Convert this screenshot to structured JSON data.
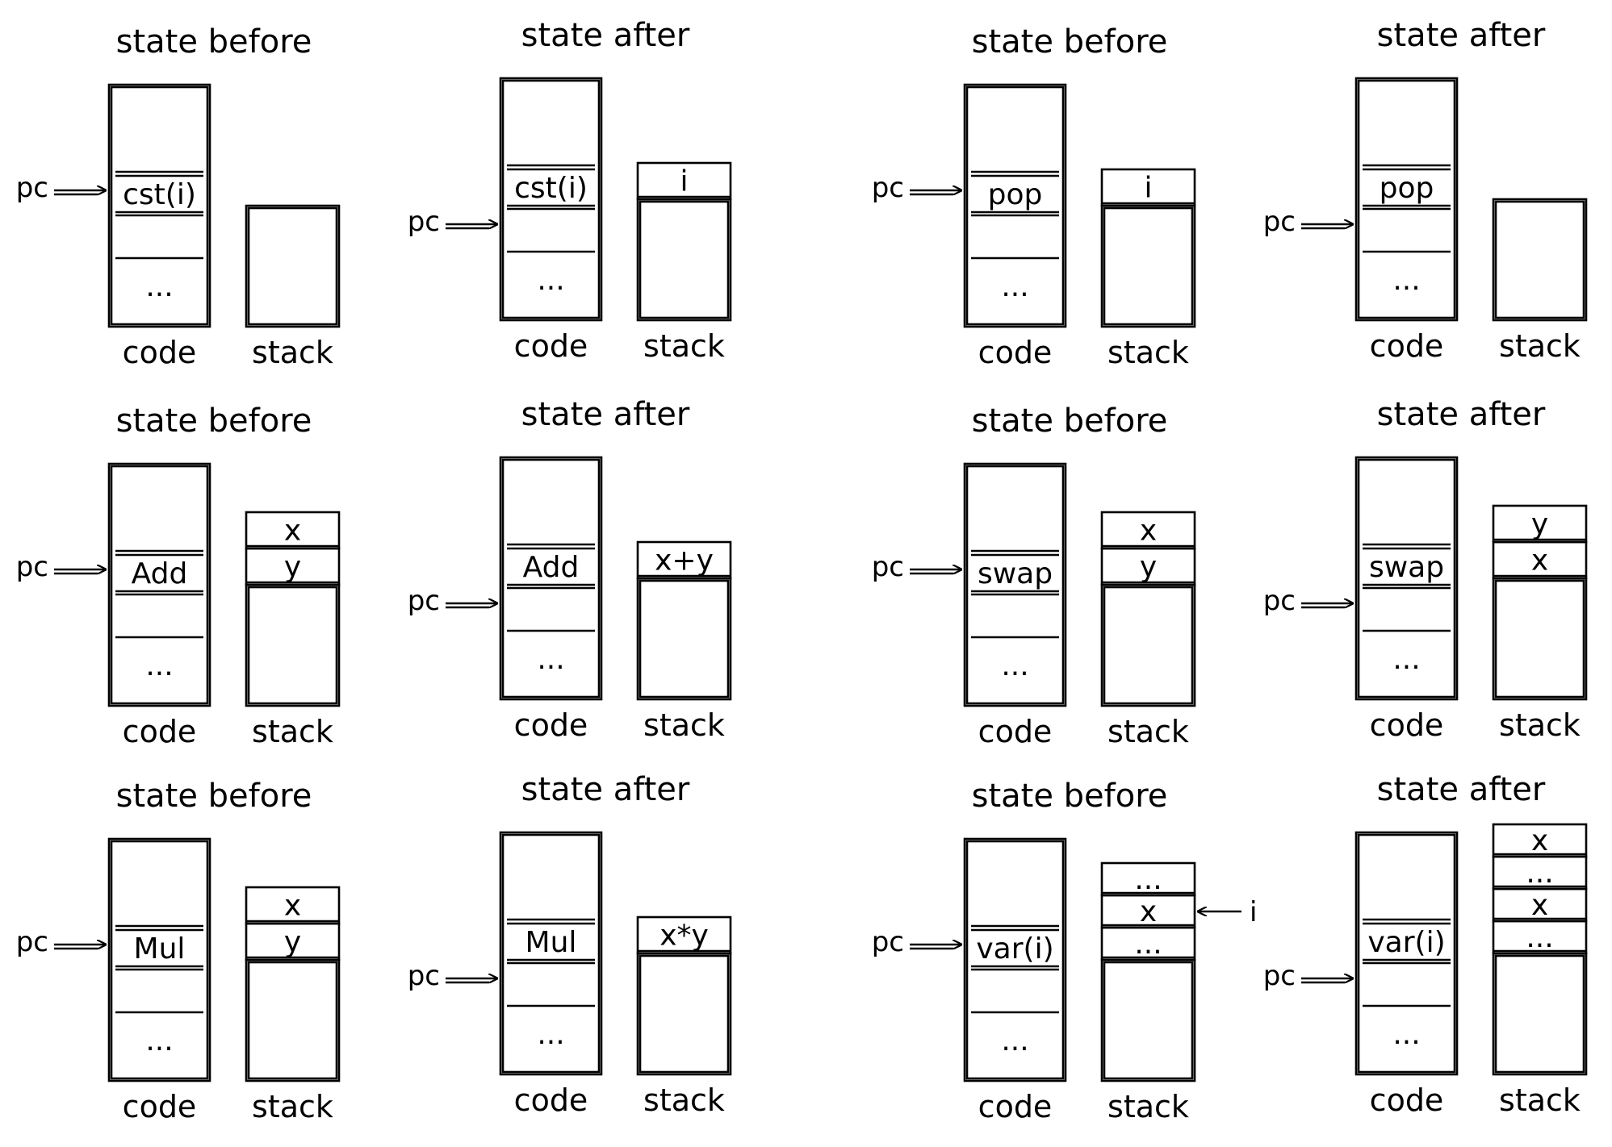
{
  "labels": {
    "before": "state before",
    "after": "state after",
    "code": "code",
    "stack": "stack",
    "pc": "pc",
    "dots": "..."
  },
  "panels": [
    {
      "id": "cst",
      "before": {
        "instr": "cst(i)",
        "stack": []
      },
      "after": {
        "instr": "cst(i)",
        "stack": [
          "i"
        ]
      }
    },
    {
      "id": "pop",
      "before": {
        "instr": "pop",
        "stack": [
          "i"
        ]
      },
      "after": {
        "instr": "pop",
        "stack": []
      }
    },
    {
      "id": "add",
      "before": {
        "instr": "Add",
        "stack": [
          "x",
          "y"
        ]
      },
      "after": {
        "instr": "Add",
        "stack": [
          "x+y"
        ]
      }
    },
    {
      "id": "swap",
      "before": {
        "instr": "swap",
        "stack": [
          "x",
          "y"
        ]
      },
      "after": {
        "instr": "swap",
        "stack": [
          "y",
          "x"
        ]
      }
    },
    {
      "id": "mul",
      "before": {
        "instr": "Mul",
        "stack": [
          "x",
          "y"
        ]
      },
      "after": {
        "instr": "Mul",
        "stack": [
          "x*y"
        ]
      }
    },
    {
      "id": "var",
      "before": {
        "instr": "var(i)",
        "stack": [
          "...",
          "x",
          "..."
        ],
        "index_label": "i"
      },
      "after": {
        "instr": "var(i)",
        "stack": [
          "x",
          "...",
          "x",
          "..."
        ]
      }
    }
  ]
}
